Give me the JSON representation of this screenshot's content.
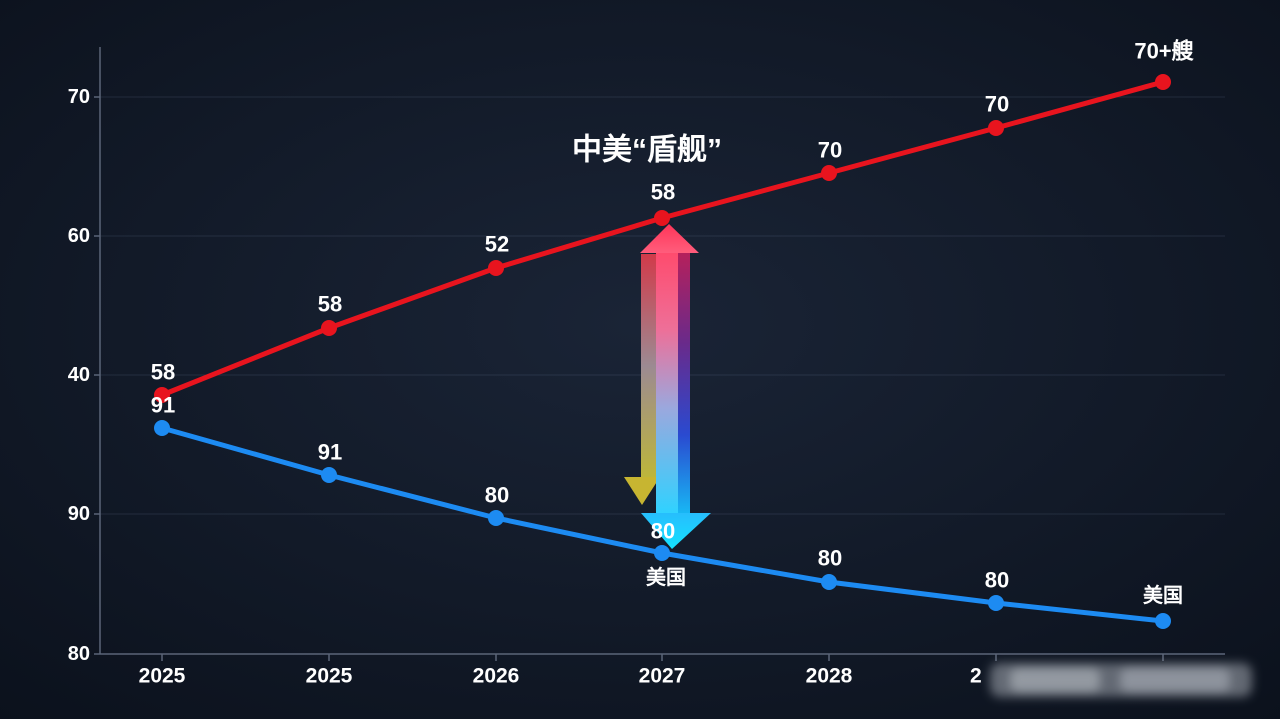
{
  "chart_data": {
    "type": "line",
    "title": "中美“盾舰”",
    "categories": [
      "2025",
      "2025",
      "2026",
      "2027",
      "2028",
      "2",
      ""
    ],
    "yticks": [
      "70",
      "60",
      "40",
      "90",
      "80"
    ],
    "grid": true,
    "series": [
      {
        "color": "#e8141e",
        "values": [
          58,
          58,
          52,
          58,
          70,
          70,
          70
        ],
        "labels": [
          "58",
          "58",
          "52",
          "58",
          "70",
          "70",
          "70+艘"
        ]
      },
      {
        "color": "#1d8bf2",
        "values": [
          91,
          91,
          80,
          80,
          80,
          80,
          null
        ],
        "labels": [
          "91",
          "91",
          "80",
          "80",
          "80",
          "80",
          ""
        ]
      }
    ],
    "annotations": [
      "美国",
      "美国"
    ]
  },
  "colors": {
    "background": "#121a28",
    "axis": "#5b6578",
    "text": "#ffffff",
    "arrow_up": "#ff4466",
    "arrow_down": "#1fd0ff"
  }
}
